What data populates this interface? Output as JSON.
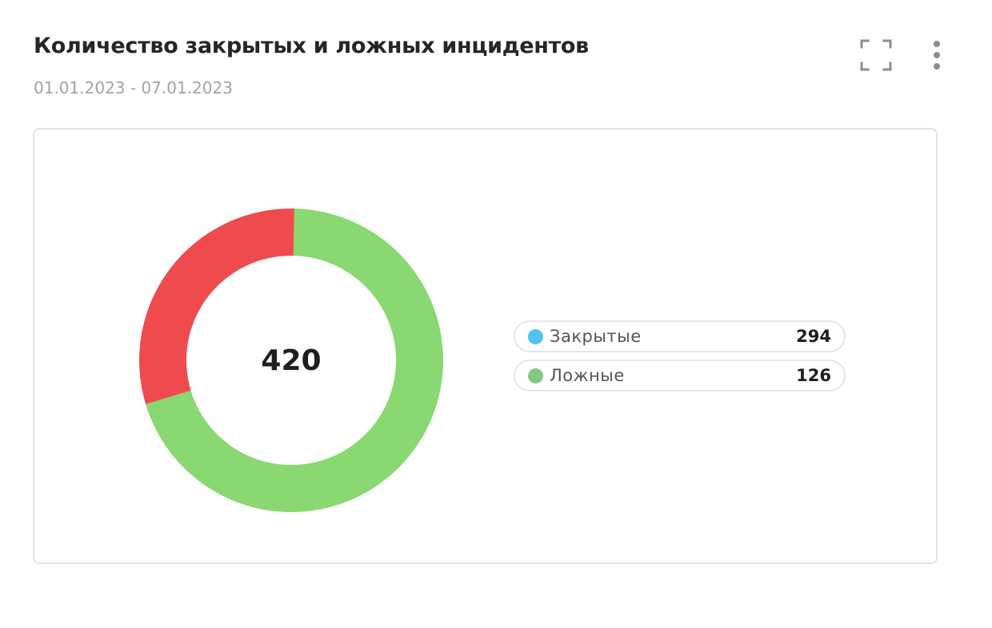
{
  "header": {
    "title": "Количество закрытых и ложных инцидентов",
    "date_range": "01.01.2023 - 07.01.2023"
  },
  "toolbar": {
    "expand_icon": "fullscreen-icon",
    "menu_icon": "more-vertical-icon"
  },
  "chart_data": {
    "type": "pie",
    "style": "donut",
    "total": "420",
    "series": [
      {
        "name": "Закрытые",
        "value": 294,
        "value_label": "294",
        "legend_color": "#4fc3f7",
        "slice_color": "#8ad872"
      },
      {
        "name": "Ложные",
        "value": 126,
        "value_label": "126",
        "legend_color": "#83c882",
        "slice_color": "#ef4b4f"
      }
    ]
  }
}
